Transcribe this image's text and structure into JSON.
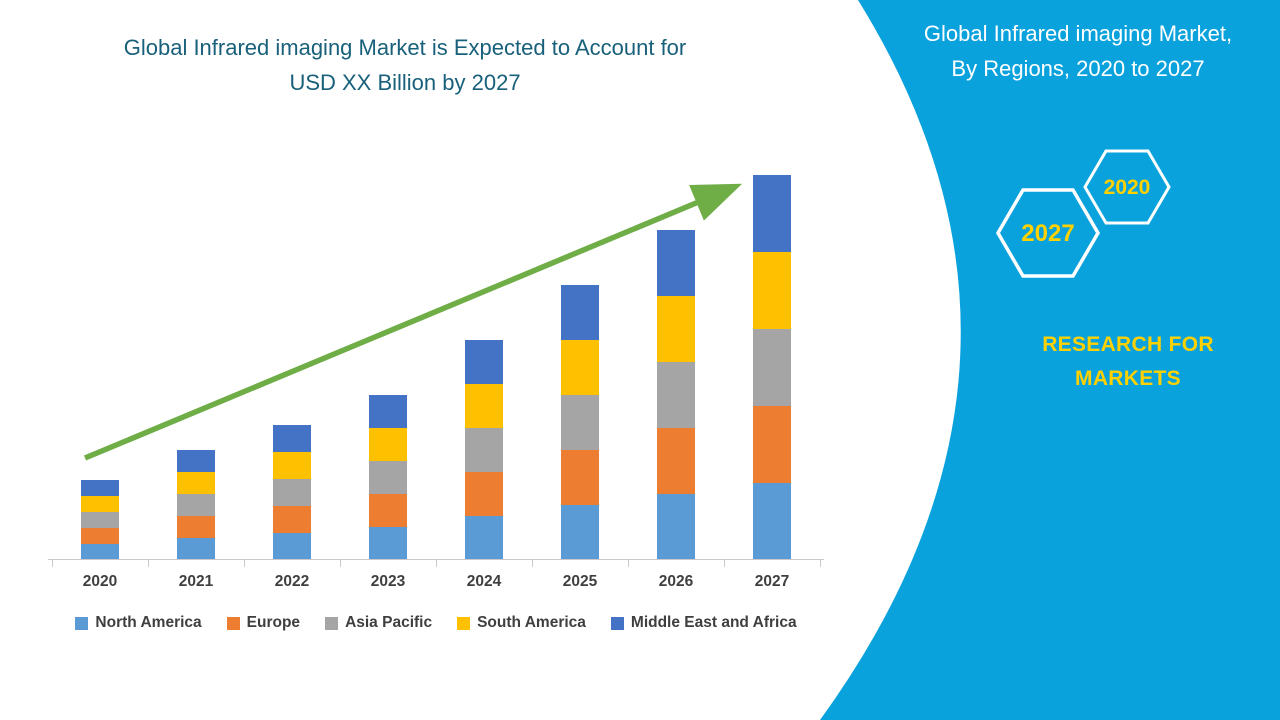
{
  "chart": {
    "title_line1": "Global Infrared imaging Market is Expected to Account for",
    "title_line2": "USD XX Billion by 2027",
    "title_color": "#19607b",
    "arrow_color": "#6fad47",
    "axis_label_color": "#3f3f3f"
  },
  "chart_data": {
    "type": "bar",
    "stacked": true,
    "title": "Global Infrared imaging Market is Expected to Account for USD XX Billion by 2027",
    "categories": [
      "2020",
      "2021",
      "2022",
      "2023",
      "2024",
      "2025",
      "2026",
      "2027"
    ],
    "series": [
      {
        "name": "North America",
        "color": "#5b9bd5",
        "values": [
          0.3,
          0.4,
          0.5,
          0.6,
          0.8,
          1.0,
          1.2,
          1.4
        ]
      },
      {
        "name": "Europe",
        "color": "#ed7d31",
        "values": [
          0.3,
          0.4,
          0.5,
          0.6,
          0.8,
          1.0,
          1.2,
          1.4
        ]
      },
      {
        "name": "Asia Pacific",
        "color": "#a5a5a5",
        "values": [
          0.3,
          0.4,
          0.5,
          0.6,
          0.8,
          1.0,
          1.2,
          1.4
        ]
      },
      {
        "name": "South America",
        "color": "#ffc000",
        "values": [
          0.3,
          0.4,
          0.5,
          0.6,
          0.8,
          1.0,
          1.2,
          1.4
        ]
      },
      {
        "name": "Middle East and Africa",
        "color": "#4472c4",
        "values": [
          0.3,
          0.4,
          0.5,
          0.6,
          0.8,
          1.0,
          1.2,
          1.4
        ]
      }
    ],
    "totals": [
      1.5,
      2.0,
      2.5,
      3.0,
      4.0,
      5.0,
      6.0,
      7.0
    ],
    "ylim": [
      0,
      7.5
    ],
    "units": "USD Billion (amount shown as XX, y-axis unlabeled)",
    "legend_position": "bottom",
    "grid": false,
    "trend_arrow": "upward straight green arrow across bar tops",
    "values_note": "Values estimated from bar heights; source chart has no numeric axis"
  },
  "panel": {
    "title_line1": "Global Infrared imaging Market,",
    "title_line2": "By Regions, 2020 to 2027",
    "background_color": "#0aa2dc",
    "accent_yellow": "#ffd100",
    "hexagons": [
      {
        "year": "2027"
      },
      {
        "year": "2020"
      }
    ],
    "brand_line1": "RESEARCH FOR",
    "brand_line2": "MARKETS"
  }
}
